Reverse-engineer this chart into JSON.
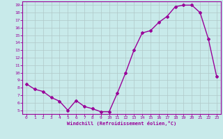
{
  "x": [
    0,
    1,
    2,
    3,
    4,
    5,
    6,
    7,
    8,
    9,
    10,
    11,
    12,
    13,
    14,
    15,
    16,
    17,
    18,
    19,
    20,
    21,
    22,
    23
  ],
  "y": [
    8.5,
    7.8,
    7.5,
    6.7,
    6.2,
    5.0,
    6.3,
    5.5,
    5.2,
    4.8,
    4.8,
    7.3,
    10.0,
    13.0,
    15.3,
    15.6,
    16.7,
    17.5,
    18.8,
    19.0,
    19.0,
    18.0,
    14.5,
    9.5
  ],
  "color": "#990099",
  "bg_color": "#c8eaea",
  "grid_color": "#b0c8c8",
  "marker": "D",
  "markersize": 2,
  "linewidth": 1.0,
  "xlabel": "Windchill (Refroidissement éolien,°C)",
  "xlim": [
    -0.5,
    23.5
  ],
  "ylim": [
    4.5,
    19.5
  ],
  "yticks": [
    5,
    6,
    7,
    8,
    9,
    10,
    11,
    12,
    13,
    14,
    15,
    16,
    17,
    18,
    19
  ],
  "xticks": [
    0,
    1,
    2,
    3,
    4,
    5,
    6,
    7,
    8,
    9,
    10,
    11,
    12,
    13,
    14,
    15,
    16,
    17,
    18,
    19,
    20,
    21,
    22,
    23
  ]
}
